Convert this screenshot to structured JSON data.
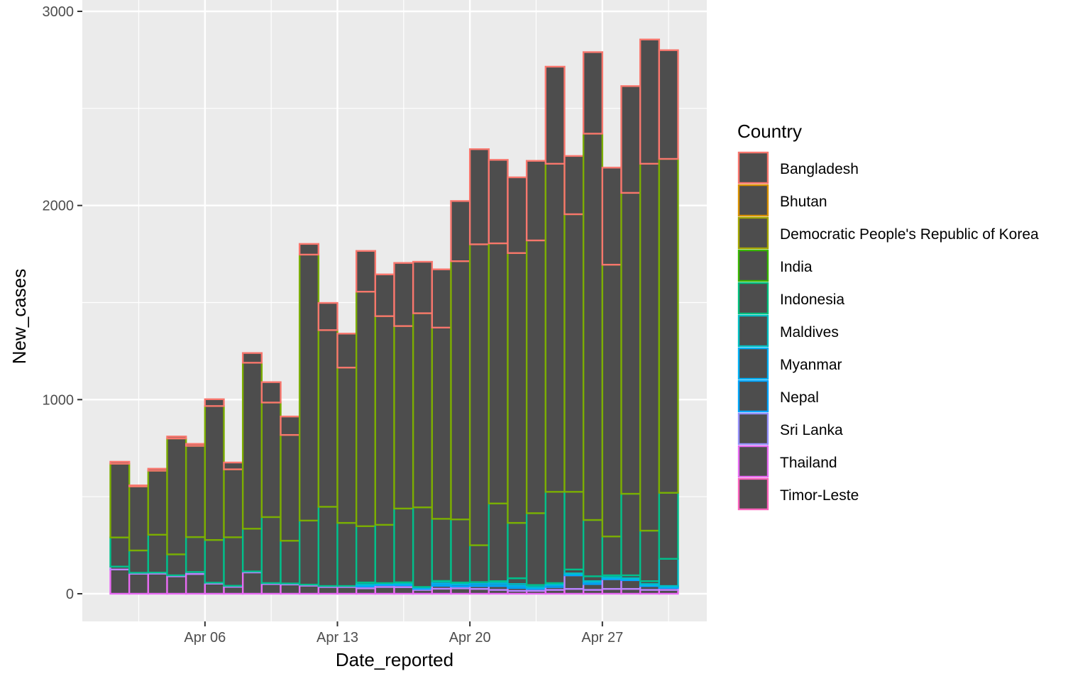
{
  "chart_data": {
    "type": "bar",
    "stacked": true,
    "xlabel": "Date_reported",
    "ylabel": "New_cases",
    "ylim": [
      -130,
      3000
    ],
    "y_ticks": [
      0,
      1000,
      2000,
      3000
    ],
    "x_ticks": [
      {
        "date": "2021-04-06",
        "label": "Apr 06"
      },
      {
        "date": "2021-04-13",
        "label": "Apr 13"
      },
      {
        "date": "2021-04-20",
        "label": "Apr 20"
      },
      {
        "date": "2021-04-27",
        "label": "Apr 27"
      }
    ],
    "x": [
      "2021-04-01",
      "2021-04-02",
      "2021-04-03",
      "2021-04-04",
      "2021-04-05",
      "2021-04-06",
      "2021-04-07",
      "2021-04-08",
      "2021-04-09",
      "2021-04-10",
      "2021-04-11",
      "2021-04-12",
      "2021-04-13",
      "2021-04-14",
      "2021-04-15",
      "2021-04-16",
      "2021-04-17",
      "2021-04-18",
      "2021-04-19",
      "2021-04-20",
      "2021-04-21",
      "2021-04-22",
      "2021-04-23",
      "2021-04-24",
      "2021-04-25",
      "2021-04-26",
      "2021-04-27",
      "2021-04-28",
      "2021-04-29",
      "2021-04-30"
    ],
    "bar_fill": "#4d4d4d",
    "grid": true,
    "panel_background": "#ebebeb",
    "legend": {
      "title": "Country",
      "position": "right"
    },
    "series": [
      {
        "name": "Timor-Leste",
        "color": "#f564e3",
        "values": [
          0,
          0,
          0,
          0,
          0,
          0,
          0,
          0,
          0,
          0,
          0,
          0,
          0,
          0,
          0,
          0,
          0,
          0,
          0,
          0,
          0,
          0,
          0,
          0,
          0,
          0,
          0,
          0,
          0,
          0
        ]
      },
      {
        "name": "Thailand",
        "color": "#e76bf3",
        "values": [
          125,
          103,
          104,
          90,
          102,
          52,
          36,
          110,
          50,
          48,
          42,
          35,
          35,
          28,
          35,
          34,
          20,
          26,
          28,
          25,
          20,
          15,
          15,
          20,
          25,
          20,
          25,
          25,
          20,
          20
        ]
      },
      {
        "name": "Sri Lanka",
        "color": "#b983ff",
        "values": [
          15,
          5,
          5,
          5,
          10,
          5,
          5,
          5,
          5,
          5,
          5,
          5,
          5,
          10,
          10,
          10,
          5,
          15,
          10,
          15,
          20,
          15,
          10,
          15,
          70,
          30,
          50,
          45,
          20,
          10
        ]
      },
      {
        "name": "Nepal",
        "color": "#00a5ff",
        "values": [
          0,
          0,
          0,
          0,
          0,
          0,
          0,
          0,
          0,
          0,
          0,
          0,
          0,
          5,
          5,
          5,
          5,
          10,
          10,
          10,
          10,
          10,
          5,
          10,
          5,
          10,
          5,
          5,
          5,
          5
        ]
      },
      {
        "name": "Myanmar",
        "color": "#00b4f0",
        "values": [
          0,
          0,
          0,
          0,
          0,
          0,
          0,
          0,
          0,
          0,
          0,
          0,
          0,
          5,
          5,
          5,
          5,
          10,
          5,
          10,
          10,
          10,
          5,
          5,
          5,
          5,
          5,
          5,
          5,
          5
        ]
      },
      {
        "name": "Maldives",
        "color": "#00bfc4",
        "values": [
          0,
          0,
          0,
          0,
          0,
          0,
          0,
          0,
          0,
          0,
          0,
          0,
          0,
          10,
          0,
          5,
          0,
          5,
          5,
          0,
          5,
          30,
          10,
          5,
          20,
          25,
          10,
          15,
          15,
          140
        ]
      },
      {
        "name": "Indonesia",
        "color": "#00c08b",
        "values": [
          150,
          115,
          195,
          108,
          180,
          220,
          250,
          220,
          340,
          220,
          330,
          408,
          325,
          290,
          300,
          380,
          410,
          320,
          325,
          190,
          400,
          285,
          370,
          470,
          400,
          290,
          200,
          420,
          260,
          340
        ]
      },
      {
        "name": "India",
        "color": "#00bc59",
        "values": [
          0,
          0,
          0,
          0,
          0,
          0,
          0,
          0,
          0,
          0,
          0,
          0,
          0,
          0,
          0,
          0,
          0,
          0,
          0,
          0,
          0,
          0,
          0,
          0,
          0,
          0,
          0,
          0,
          0,
          0
        ]
      },
      {
        "name": "Democratic People's Republic of Korea",
        "color": "#7cae00",
        "values": [
          380,
          330,
          330,
          597,
          470,
          690,
          350,
          855,
          590,
          545,
          1370,
          910,
          800,
          1208,
          1075,
          940,
          1000,
          985,
          1330,
          1550,
          1340,
          1390,
          1405,
          1690,
          1430,
          1990,
          1400,
          1550,
          1890,
          1720
        ]
      },
      {
        "name": "Bhutan",
        "color": "#a3a500",
        "values": [
          0,
          0,
          0,
          0,
          0,
          0,
          0,
          0,
          0,
          0,
          0,
          0,
          0,
          0,
          0,
          0,
          0,
          0,
          0,
          0,
          0,
          0,
          0,
          0,
          0,
          0,
          0,
          0,
          0,
          0
        ]
      },
      {
        "name": "Bangladesh",
        "color": "#f8766d",
        "values": [
          10,
          5,
          10,
          10,
          10,
          35,
          35,
          50,
          105,
          95,
          55,
          140,
          175,
          210,
          215,
          325,
          265,
          300,
          310,
          490,
          430,
          390,
          410,
          500,
          300,
          420,
          500,
          550,
          640,
          560
        ]
      }
    ],
    "legend_entries": [
      {
        "name": "Bangladesh",
        "color": "#f8766d"
      },
      {
        "name": "Bhutan",
        "color": "#d89000"
      },
      {
        "name": "Democratic People's Republic of Korea",
        "color": "#a3a500"
      },
      {
        "name": "India",
        "color": "#39b600"
      },
      {
        "name": "Indonesia",
        "color": "#00bf7d"
      },
      {
        "name": "Maldives",
        "color": "#00bfc4"
      },
      {
        "name": "Myanmar",
        "color": "#00b0f6"
      },
      {
        "name": "Nepal",
        "color": "#00a5ff"
      },
      {
        "name": "Sri Lanka",
        "color": "#9590ff"
      },
      {
        "name": "Thailand",
        "color": "#e76bf3"
      },
      {
        "name": "Timor-Leste",
        "color": "#ff62bc"
      }
    ]
  }
}
